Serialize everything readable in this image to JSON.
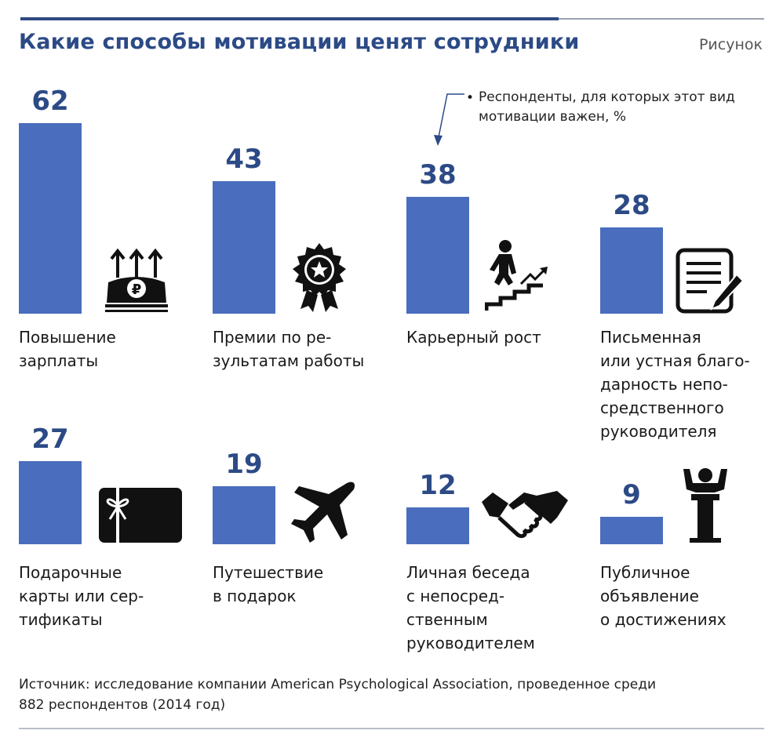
{
  "figure_label": "Рисунок",
  "note": "Респонденты, для которых этот вид мотивации важен, %",
  "colors": {
    "bar": "#4a6dbd",
    "title": "#2c4a85",
    "icon": "#111111"
  },
  "chart_data": {
    "type": "bar",
    "title": "Какие способы мотивации ценят сотрудники",
    "ylabel": "Респонденты, для которых этот вид мотивации важен, %",
    "ylim": [
      0,
      62
    ],
    "categories": [
      "Повышение\nзарплаты",
      "Премии по ре-\nзультатам работы",
      "Карьерный рост",
      "Письменная\nили устная благо-\nдарность непо-\nсредственного\nруководителя",
      "Подарочные\nкарты или сер-\nтификаты",
      "Путешествие\nв подарок",
      "Личная беседа\nс непосред-\nственным\nруководителем",
      "Публичное\nобъявление\nо достижениях"
    ],
    "values": [
      62,
      43,
      38,
      28,
      27,
      19,
      12,
      9
    ],
    "value_labels": [
      "62",
      "43",
      "38",
      "28",
      "27",
      "19",
      "12",
      "9"
    ],
    "icons": [
      "money-raise-icon",
      "award-rosette-icon",
      "career-stairs-icon",
      "letter-pen-icon",
      "gift-card-icon",
      "airplane-icon",
      "handshake-icon",
      "podium-speaker-icon"
    ]
  },
  "source": "Источник: исследование компании American Psychological Association, проведенное среди\n882 респондентов (2014 год)"
}
